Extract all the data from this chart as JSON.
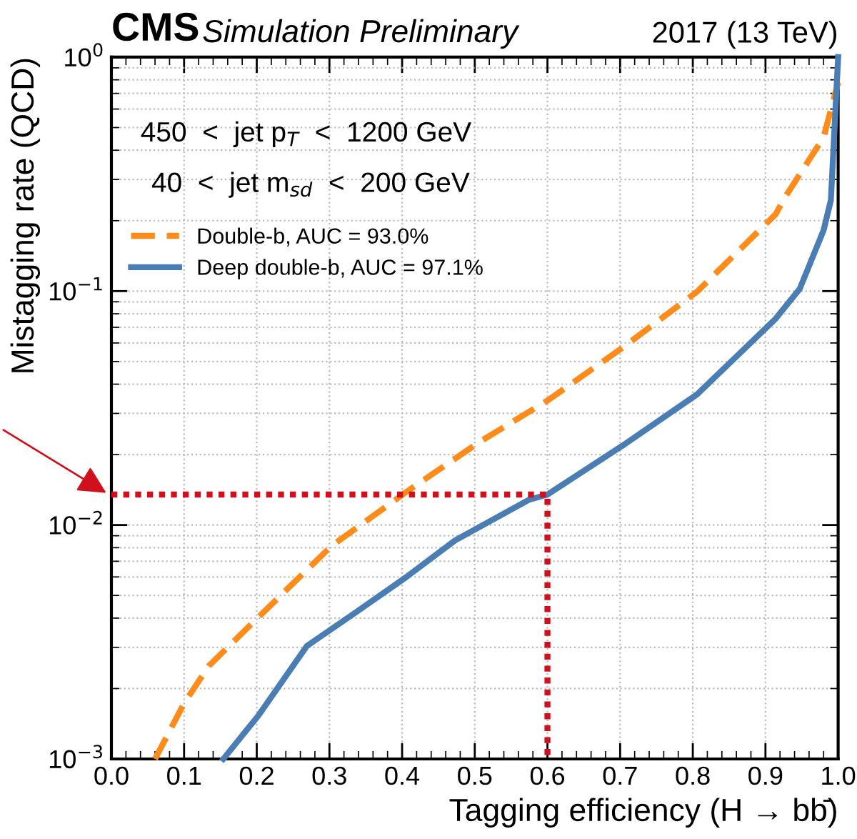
{
  "chart_data": {
    "type": "line",
    "title": "CMS",
    "subtitle": "Simulation Preliminary",
    "xlabel": "Tagging efficiency (H → bb̄)",
    "ylabel": "Mistagging rate (QCD)",
    "annotations": [
      "2017 (13 TeV)",
      "450  <  jet p$_{T}$  <  1200 GeV",
      "40  <  jet m$_{sd}$  <  200 GeV"
    ],
    "series": [
      {
        "name": "Double-b, AUC = 93.0%",
        "color": "#ff8c1a",
        "line_style": "dashed",
        "x": [
          0.06,
          0.1,
          0.134,
          0.202,
          0.303,
          0.405,
          0.507,
          0.601,
          0.703,
          0.806,
          0.914,
          0.927,
          0.98,
          1.0
        ],
        "values": [
          0.001,
          0.00173,
          0.0025,
          0.00403,
          0.00815,
          0.0138,
          0.0227,
          0.0342,
          0.0572,
          0.0995,
          0.213,
          0.252,
          0.455,
          0.78
        ]
      },
      {
        "name": "Deep double-b, AUC = 97.1%",
        "color": "#4a7db3",
        "line_style": "solid",
        "x": [
          0.154,
          0.202,
          0.269,
          0.338,
          0.405,
          0.473,
          0.574,
          0.6,
          0.703,
          0.806,
          0.914,
          0.947,
          0.98,
          0.99,
          1.0
        ],
        "values": [
          0.001,
          0.00153,
          0.00304,
          0.00427,
          0.00597,
          0.0086,
          0.0128,
          0.0135,
          0.0218,
          0.0362,
          0.0762,
          0.102,
          0.182,
          0.245,
          1.0
        ]
      },
      {
        "color": "#d0101d",
        "line_style": "dotted",
        "x": [
          0.0,
          0.6,
          0.6
        ],
        "values": [
          0.0135,
          0.0135,
          0.001
        ]
      }
    ],
    "log": "y",
    "xlim": [
      0,
      1
    ],
    "ylim": [
      0.001,
      1
    ],
    "xticks": [
      {
        "value": 0,
        "label": "0.0"
      },
      0.1,
      0.2,
      0.3,
      0.4,
      0.5,
      0.6,
      0.7,
      0.8,
      0.9,
      {
        "value": 1,
        "label": "1.0"
      }
    ],
    "yticks": [
      {
        "value": 0.001,
        "label": "10$^{−3}$"
      },
      {
        "value": 0.01,
        "label": "10$^{−2}$"
      },
      {
        "value": 0.1,
        "label": "10$^{−1}$"
      },
      {
        "value": 1,
        "label": "10$^{0}$"
      }
    ],
    "grid": true,
    "legend": "top left"
  }
}
